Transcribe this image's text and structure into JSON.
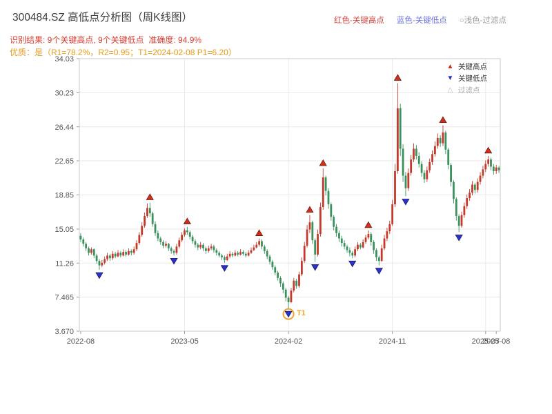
{
  "header": {
    "title": "300484.SZ 高低点分析图（周K线图）",
    "legend_top": [
      {
        "label": "红色-关键高点",
        "color": "#d04038"
      },
      {
        "label": "蓝色-关键低点",
        "color": "#6a71d8"
      },
      {
        "label": "○浅色-过滤点",
        "color": "#9a9a9a"
      }
    ],
    "result_line": "识别结果: 9个关键高点, 9个关键低点  准确度: 94.9%",
    "quality_line": "优质：是（R1=78.2%，R2=0.95；T1=2024-02-08 P1=6.20）"
  },
  "chart_data": {
    "type": "candlestick",
    "title": "300484.SZ 高低点分析图（周K线图）",
    "frequency": "weekly",
    "ylim": [
      3.67,
      34.03
    ],
    "y_ticks": [
      {
        "value": 3.67,
        "label": "3.670"
      },
      {
        "value": 7.465,
        "label": "7.465"
      },
      {
        "value": 11.26,
        "label": "11.26"
      },
      {
        "value": 15.05,
        "label": "15.05"
      },
      {
        "value": 18.85,
        "label": "18.85"
      },
      {
        "value": 22.65,
        "label": "22.65"
      },
      {
        "value": 26.44,
        "label": "26.44"
      },
      {
        "value": 30.23,
        "label": "30.23"
      },
      {
        "value": 34.03,
        "label": "34.03"
      }
    ],
    "x_ticks": [
      {
        "index": 0,
        "label": "2022-08",
        "grid": false
      },
      {
        "index": 39,
        "label": "2023-05",
        "grid": true
      },
      {
        "index": 78,
        "label": "2024-02",
        "grid": true
      },
      {
        "index": 117,
        "label": "2024-11",
        "grid": true
      },
      {
        "index": 152,
        "label": "2025-07",
        "grid": true
      },
      {
        "index": 156,
        "label": "2025-08",
        "grid": false
      }
    ],
    "colors": {
      "up": "#c5392b",
      "down": "#3a915d",
      "key_high": "#d32e1b",
      "key_low": "#2b32c8",
      "filter": "#c9c9c9",
      "t1": "#f0a22e",
      "grid": "#eaeaea",
      "frame": "#c8c8c8",
      "tick": "#999999"
    },
    "legend": [
      {
        "label": "关键高点",
        "marker": "up"
      },
      {
        "label": "关键低点",
        "marker": "down"
      },
      {
        "label": "过滤点",
        "marker": "filter"
      }
    ],
    "candles": [
      [
        14.3,
        14.6,
        13.6,
        13.9
      ],
      [
        13.9,
        14.1,
        13.1,
        13.4
      ],
      [
        13.4,
        13.6,
        12.6,
        12.9
      ],
      [
        12.9,
        13.1,
        12.1,
        12.4
      ],
      [
        12.4,
        13.0,
        12.2,
        12.8
      ],
      [
        12.8,
        12.9,
        11.8,
        12.1
      ],
      [
        12.1,
        12.3,
        11.2,
        11.5
      ],
      [
        11.5,
        11.7,
        10.5,
        11.0
      ],
      [
        11.0,
        11.6,
        10.8,
        11.3
      ],
      [
        11.3,
        12.0,
        11.1,
        11.7
      ],
      [
        11.7,
        12.4,
        11.5,
        12.1
      ],
      [
        12.1,
        12.3,
        11.5,
        11.8
      ],
      [
        11.8,
        12.6,
        11.6,
        12.3
      ],
      [
        12.3,
        12.5,
        11.8,
        12.0
      ],
      [
        12.0,
        12.7,
        11.9,
        12.4
      ],
      [
        12.4,
        12.6,
        11.9,
        12.1
      ],
      [
        12.1,
        12.8,
        12.0,
        12.5
      ],
      [
        12.5,
        12.7,
        12.0,
        12.2
      ],
      [
        12.2,
        12.9,
        12.1,
        12.6
      ],
      [
        12.6,
        12.8,
        12.1,
        12.4
      ],
      [
        12.4,
        13.1,
        12.2,
        12.8
      ],
      [
        12.8,
        13.8,
        12.6,
        13.5
      ],
      [
        13.5,
        14.7,
        13.3,
        14.4
      ],
      [
        14.4,
        15.8,
        14.2,
        15.4
      ],
      [
        15.4,
        16.9,
        15.2,
        16.5
      ],
      [
        16.5,
        17.9,
        16.3,
        17.4
      ],
      [
        17.4,
        18.0,
        16.4,
        16.8
      ],
      [
        16.8,
        17.0,
        15.3,
        15.6
      ],
      [
        15.6,
        15.9,
        14.3,
        14.6
      ],
      [
        14.6,
        14.9,
        13.7,
        14.0
      ],
      [
        14.0,
        14.2,
        13.3,
        13.6
      ],
      [
        13.6,
        13.8,
        12.9,
        13.2
      ],
      [
        13.2,
        13.7,
        13.0,
        13.4
      ],
      [
        13.4,
        13.5,
        12.6,
        12.9
      ],
      [
        12.9,
        13.1,
        12.3,
        12.6
      ],
      [
        12.6,
        12.8,
        12.1,
        12.4
      ],
      [
        12.4,
        13.4,
        12.2,
        13.1
      ],
      [
        13.1,
        14.1,
        12.9,
        13.8
      ],
      [
        13.8,
        14.7,
        13.6,
        14.4
      ],
      [
        14.4,
        15.1,
        14.2,
        14.9
      ],
      [
        14.9,
        15.3,
        14.4,
        14.7
      ],
      [
        14.7,
        14.9,
        13.9,
        14.2
      ],
      [
        14.2,
        14.4,
        13.4,
        13.7
      ],
      [
        13.7,
        13.9,
        13.0,
        13.3
      ],
      [
        13.3,
        13.5,
        12.7,
        13.0
      ],
      [
        13.0,
        13.6,
        12.8,
        13.3
      ],
      [
        13.3,
        13.5,
        12.6,
        12.9
      ],
      [
        12.9,
        13.1,
        12.3,
        12.6
      ],
      [
        12.6,
        13.2,
        12.4,
        12.9
      ],
      [
        12.9,
        13.4,
        12.7,
        13.1
      ],
      [
        13.1,
        13.3,
        12.4,
        12.7
      ],
      [
        12.7,
        12.9,
        12.1,
        12.4
      ],
      [
        12.4,
        12.6,
        11.9,
        12.1
      ],
      [
        12.1,
        12.3,
        11.6,
        11.9
      ],
      [
        11.9,
        12.1,
        11.3,
        11.6
      ],
      [
        11.6,
        12.3,
        11.5,
        12.0
      ],
      [
        12.0,
        12.6,
        11.8,
        12.3
      ],
      [
        12.3,
        12.5,
        11.9,
        12.1
      ],
      [
        12.1,
        12.7,
        12.0,
        12.4
      ],
      [
        12.4,
        12.6,
        12.0,
        12.2
      ],
      [
        12.2,
        12.8,
        12.1,
        12.5
      ],
      [
        12.5,
        12.7,
        12.1,
        12.3
      ],
      [
        12.3,
        12.5,
        11.9,
        12.1
      ],
      [
        12.1,
        12.7,
        12.0,
        12.4
      ],
      [
        12.4,
        13.0,
        12.3,
        12.7
      ],
      [
        12.7,
        13.3,
        12.6,
        13.0
      ],
      [
        13.0,
        13.6,
        12.9,
        13.3
      ],
      [
        13.3,
        14.0,
        13.1,
        13.7
      ],
      [
        13.7,
        13.9,
        12.8,
        13.1
      ],
      [
        13.1,
        13.3,
        12.3,
        12.6
      ],
      [
        12.6,
        12.8,
        11.7,
        12.0
      ],
      [
        12.0,
        12.2,
        11.1,
        11.4
      ],
      [
        11.4,
        11.6,
        10.5,
        10.8
      ],
      [
        10.8,
        11.0,
        9.9,
        10.2
      ],
      [
        10.2,
        10.4,
        9.3,
        9.6
      ],
      [
        9.6,
        9.8,
        8.6,
        9.0
      ],
      [
        9.0,
        9.2,
        7.9,
        8.3
      ],
      [
        8.3,
        8.5,
        7.0,
        7.4
      ],
      [
        7.4,
        7.6,
        6.2,
        6.9
      ],
      [
        6.9,
        8.5,
        6.8,
        8.2
      ],
      [
        8.2,
        9.6,
        8.0,
        9.3
      ],
      [
        9.3,
        9.5,
        8.4,
        8.7
      ],
      [
        8.7,
        10.3,
        8.5,
        10.0
      ],
      [
        10.0,
        11.9,
        9.8,
        11.5
      ],
      [
        11.5,
        13.6,
        11.3,
        13.2
      ],
      [
        13.2,
        15.5,
        13.0,
        15.0
      ],
      [
        15.0,
        16.6,
        14.6,
        15.8
      ],
      [
        15.8,
        16.0,
        13.4,
        13.8
      ],
      [
        13.8,
        14.0,
        11.4,
        12.2
      ],
      [
        12.2,
        15.0,
        12.0,
        14.5
      ],
      [
        14.5,
        18.0,
        14.2,
        17.5
      ],
      [
        17.5,
        21.8,
        17.2,
        20.8
      ],
      [
        20.8,
        21.0,
        18.8,
        19.3
      ],
      [
        19.3,
        19.6,
        17.3,
        17.8
      ],
      [
        17.8,
        18.0,
        16.0,
        16.4
      ],
      [
        16.4,
        16.6,
        14.9,
        15.3
      ],
      [
        15.3,
        15.6,
        14.2,
        14.6
      ],
      [
        14.6,
        14.9,
        13.6,
        14.0
      ],
      [
        14.0,
        14.3,
        13.1,
        13.5
      ],
      [
        13.5,
        13.8,
        12.8,
        13.1
      ],
      [
        13.1,
        13.3,
        12.4,
        12.7
      ],
      [
        12.7,
        13.0,
        12.0,
        12.4
      ],
      [
        12.4,
        12.6,
        11.8,
        12.1
      ],
      [
        12.1,
        13.1,
        11.9,
        12.8
      ],
      [
        12.8,
        13.6,
        12.6,
        13.3
      ],
      [
        13.3,
        13.5,
        12.8,
        13.0
      ],
      [
        13.0,
        13.9,
        12.9,
        13.6
      ],
      [
        13.6,
        14.4,
        13.4,
        14.1
      ],
      [
        14.1,
        14.9,
        13.9,
        14.5
      ],
      [
        14.5,
        14.7,
        13.2,
        13.6
      ],
      [
        13.6,
        13.8,
        12.3,
        12.7
      ],
      [
        12.7,
        12.9,
        11.5,
        11.9
      ],
      [
        11.9,
        12.1,
        11.0,
        11.5
      ],
      [
        11.5,
        13.3,
        11.4,
        12.9
      ],
      [
        12.9,
        14.4,
        12.7,
        14.0
      ],
      [
        14.0,
        15.2,
        13.7,
        14.8
      ],
      [
        14.8,
        16.0,
        14.5,
        15.6
      ],
      [
        15.6,
        18.3,
        15.4,
        17.8
      ],
      [
        17.8,
        22.3,
        17.5,
        21.5
      ],
      [
        21.5,
        31.3,
        21.2,
        28.5
      ],
      [
        28.5,
        29.0,
        23.2,
        24.0
      ],
      [
        24.0,
        24.5,
        20.3,
        21.0
      ],
      [
        21.0,
        21.4,
        18.7,
        19.6
      ],
      [
        19.6,
        21.8,
        19.3,
        21.3
      ],
      [
        21.3,
        23.3,
        21.0,
        22.8
      ],
      [
        22.8,
        24.6,
        22.5,
        24.0
      ],
      [
        24.0,
        24.4,
        22.8,
        23.2
      ],
      [
        23.2,
        23.6,
        21.9,
        22.3
      ],
      [
        22.3,
        22.6,
        20.9,
        21.3
      ],
      [
        21.3,
        21.6,
        20.2,
        20.6
      ],
      [
        20.6,
        22.0,
        20.3,
        21.6
      ],
      [
        21.6,
        22.9,
        21.3,
        22.5
      ],
      [
        22.5,
        23.8,
        22.2,
        23.4
      ],
      [
        23.4,
        24.8,
        23.1,
        24.3
      ],
      [
        24.3,
        25.7,
        24.0,
        25.2
      ],
      [
        25.2,
        25.5,
        24.2,
        24.6
      ],
      [
        24.6,
        26.6,
        24.3,
        25.8
      ],
      [
        25.8,
        26.0,
        23.4,
        23.9
      ],
      [
        23.9,
        24.1,
        21.7,
        22.2
      ],
      [
        22.2,
        22.4,
        19.8,
        20.3
      ],
      [
        20.3,
        20.5,
        17.9,
        18.4
      ],
      [
        18.4,
        18.6,
        16.0,
        16.5
      ],
      [
        16.5,
        16.7,
        14.7,
        15.4
      ],
      [
        15.4,
        17.0,
        15.2,
        16.6
      ],
      [
        16.6,
        18.0,
        16.3,
        17.6
      ],
      [
        17.6,
        18.9,
        17.3,
        18.5
      ],
      [
        18.5,
        19.5,
        18.2,
        19.1
      ],
      [
        19.1,
        20.4,
        18.8,
        20.0
      ],
      [
        20.0,
        20.2,
        19.0,
        19.4
      ],
      [
        19.4,
        20.7,
        19.1,
        20.3
      ],
      [
        20.3,
        21.4,
        20.0,
        21.0
      ],
      [
        21.0,
        22.1,
        20.7,
        21.7
      ],
      [
        21.7,
        22.7,
        21.4,
        22.3
      ],
      [
        22.3,
        23.2,
        22.0,
        22.8
      ],
      [
        22.8,
        23.0,
        21.6,
        22.0
      ],
      [
        22.0,
        22.3,
        21.1,
        21.5
      ],
      [
        21.5,
        22.2,
        21.2,
        21.9
      ],
      [
        21.9,
        22.1,
        21.3,
        21.6
      ]
    ],
    "key_highs": [
      {
        "index": 26,
        "price": 18.0
      },
      {
        "index": 40,
        "price": 15.3
      },
      {
        "index": 67,
        "price": 14.0
      },
      {
        "index": 86,
        "price": 16.6
      },
      {
        "index": 91,
        "price": 21.8
      },
      {
        "index": 108,
        "price": 14.9
      },
      {
        "index": 119,
        "price": 31.3
      },
      {
        "index": 136,
        "price": 26.6
      },
      {
        "index": 153,
        "price": 23.2
      }
    ],
    "key_lows": [
      {
        "index": 7,
        "price": 10.5
      },
      {
        "index": 35,
        "price": 12.1
      },
      {
        "index": 54,
        "price": 11.3
      },
      {
        "index": 78,
        "price": 6.2
      },
      {
        "index": 88,
        "price": 11.4
      },
      {
        "index": 102,
        "price": 11.8
      },
      {
        "index": 112,
        "price": 11.0
      },
      {
        "index": 122,
        "price": 18.7
      },
      {
        "index": 142,
        "price": 14.7
      }
    ],
    "t1": {
      "index": 78,
      "price": 6.2,
      "label": "T1",
      "date": "2024-02-08"
    }
  }
}
